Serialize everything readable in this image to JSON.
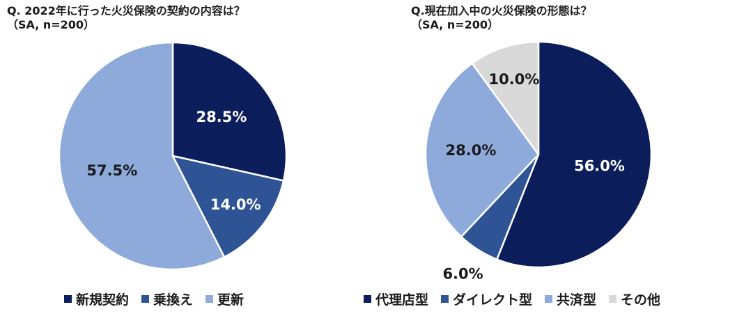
{
  "chart_data": [
    {
      "type": "pie",
      "title": "Q. 2022年に行った火災保険の契約の内容は？",
      "subtitle": "（SA, n=200）",
      "categories": [
        "新規契約",
        "乗換え",
        "更新"
      ],
      "values": [
        28.5,
        14.0,
        57.5
      ],
      "labels": [
        "28.5%",
        "14.0%",
        "57.5%"
      ],
      "colors": [
        "#0b1e5b",
        "#2e5495",
        "#8eaadb"
      ],
      "label_colors": [
        "#ffffff",
        "#ffffff",
        "#1a1a1a"
      ],
      "legend_position": "bottom"
    },
    {
      "type": "pie",
      "title": "Q.現在加入中の火災保険の形態は？",
      "subtitle": "（SA, n=200）",
      "categories": [
        "代理店型",
        "ダイレクト型",
        "共済型",
        "その他"
      ],
      "values": [
        56.0,
        6.0,
        28.0,
        10.0
      ],
      "labels": [
        "56.0%",
        "6.0%",
        "28.0%",
        "10.0%"
      ],
      "colors": [
        "#0b1e5b",
        "#2e5495",
        "#8eaadb",
        "#d9d9d9"
      ],
      "label_colors": [
        "#ffffff",
        "#1a1a1a",
        "#1a1a1a",
        "#1a1a1a"
      ],
      "legend_position": "bottom"
    }
  ]
}
